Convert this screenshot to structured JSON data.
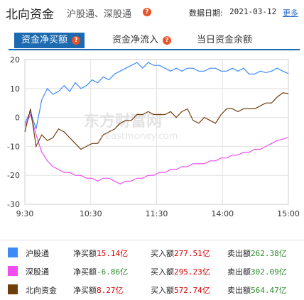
{
  "header": {
    "title": "北向资金",
    "subtitle": "沪股通、深股通",
    "date_label": "数据日期:",
    "date_value": "2021-03-12",
    "more_label": "更多"
  },
  "tabs": [
    {
      "label": "资金净买额",
      "active": true,
      "has_help": true
    },
    {
      "label": "资金净流入",
      "active": false,
      "has_help": true
    },
    {
      "label": "当日资金余额",
      "active": false,
      "has_help": false
    }
  ],
  "chart_data": {
    "type": "line",
    "x_ticks": [
      "9:30",
      "10:30",
      "11:30",
      "14:00",
      "15:00"
    ],
    "y_ticks": [
      "20",
      "10",
      "0",
      "-10",
      "-20",
      "-30"
    ],
    "ylim": [
      -30,
      20
    ],
    "grid": true,
    "watermark": "东方财富网",
    "watermark_sub": "eastmoney.com",
    "series": [
      {
        "name": "沪股通",
        "color": "#3d8af7",
        "values": [
          -2,
          2,
          -4,
          6,
          10,
          8,
          9,
          11,
          9,
          12,
          10,
          11,
          13,
          12,
          14,
          13,
          15,
          16,
          17,
          18,
          19,
          17,
          19,
          18,
          18,
          17,
          16,
          17,
          16,
          17,
          17,
          16,
          16,
          17,
          17,
          16,
          16,
          17,
          16,
          17,
          15,
          15,
          16,
          15.5,
          16,
          17,
          16,
          15.14
        ]
      },
      {
        "name": "深股通",
        "color": "#f04cf0",
        "values": [
          -3,
          1,
          -6,
          -12,
          -15,
          -17,
          -18,
          -19,
          -19,
          -20,
          -20,
          -21,
          -21,
          -22,
          -21,
          -21,
          -22,
          -23,
          -22,
          -22,
          -21,
          -21,
          -20,
          -20,
          -19,
          -19,
          -18,
          -18,
          -17,
          -17,
          -16,
          -16,
          -16,
          -15,
          -15,
          -14,
          -14,
          -13,
          -13,
          -12,
          -12,
          -11,
          -11,
          -10,
          -9,
          -8,
          -7.5,
          -6.86
        ]
      },
      {
        "name": "北向资金",
        "color": "#6f3f0b",
        "values": [
          -5,
          3,
          -10,
          -6,
          -8,
          -7,
          -4,
          -5,
          -7,
          -9,
          -11,
          -10,
          -9,
          -9,
          -6,
          -5,
          -4,
          -2,
          -1,
          -1,
          1,
          1,
          2,
          1,
          1,
          1,
          2,
          0,
          2,
          3,
          -1,
          -2,
          0,
          -1,
          -2,
          1,
          3,
          3,
          2,
          3,
          3,
          3,
          4,
          5,
          5,
          7,
          8.5,
          8.27
        ]
      }
    ]
  },
  "legend": [
    {
      "swatch": "#3d8af7",
      "name": "沪股通",
      "net_label": "净买额",
      "net_value": "15.14亿",
      "net_color": "red",
      "buy_label": "买入额",
      "buy_value": "277.51亿",
      "sell_label": "卖出额",
      "sell_value": "262.38亿"
    },
    {
      "swatch": "#f04cf0",
      "name": "深股通",
      "net_label": "净买额",
      "net_value": "-6.86亿",
      "net_color": "green",
      "buy_label": "买入额",
      "buy_value": "295.23亿",
      "sell_label": "卖出额",
      "sell_value": "302.09亿"
    },
    {
      "swatch": "#6f3f0b",
      "name": "北向资金",
      "net_label": "净买额",
      "net_value": "8.27亿",
      "net_color": "red",
      "buy_label": "买入额",
      "buy_value": "572.74亿",
      "sell_label": "卖出额",
      "sell_value": "564.47亿"
    }
  ]
}
